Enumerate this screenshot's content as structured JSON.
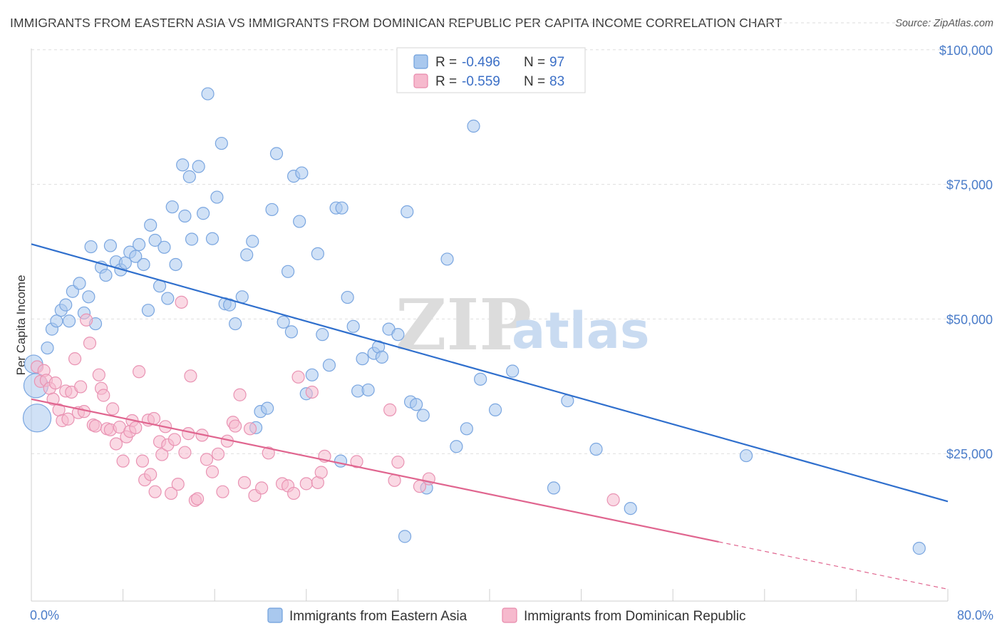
{
  "title": "IMMIGRANTS FROM EASTERN ASIA VS IMMIGRANTS FROM DOMINICAN REPUBLIC PER CAPITA INCOME CORRELATION CHART",
  "source": "Source: ZipAtlas.com",
  "watermark": {
    "zip": "ZIP",
    "atlas": "atlas"
  },
  "colors": {
    "blue": "#4a7cc9",
    "blue_fill": "#a9c8ee",
    "blue_line": "#2f6fcd",
    "pink": "#e0729a",
    "pink_fill": "#f6b9cd",
    "pink_line": "#e0658f"
  },
  "legend": {
    "rows": [
      {
        "r_label": "R = ",
        "r_value": "-0.496",
        "n_label": "N = ",
        "n_value": "97"
      },
      {
        "r_label": "R = ",
        "r_value": "-0.559",
        "n_label": "N = ",
        "n_value": "83"
      }
    ]
  },
  "bottom_legend": [
    "Immigrants from Eastern Asia",
    "Immigrants from Dominican Republic"
  ],
  "chart_data": {
    "type": "scatter",
    "xlabel": "",
    "ylabel": "Per Capita Income",
    "xlim": [
      0,
      80
    ],
    "ylim": [
      0,
      105000
    ],
    "x_tick_labels": [
      {
        "value": 0,
        "label": "0.0%"
      },
      {
        "value": 80,
        "label": "80.0%"
      }
    ],
    "y_ticks": [
      {
        "value": 25000,
        "label": "$25,000"
      },
      {
        "value": 50000,
        "label": "$50,000"
      },
      {
        "value": 75000,
        "label": "$75,000"
      },
      {
        "value": 100000,
        "label": "$100,000"
      }
    ],
    "grid": "horizontal-dashed",
    "legend_position": "top-center",
    "series": [
      {
        "name": "Immigrants from Eastern Asia",
        "color": "#4a7cc9",
        "trend": {
          "x": [
            0,
            80
          ],
          "y": [
            66300,
            18500
          ]
        },
        "points": [
          {
            "x": 0.2,
            "y": 44000,
            "s": 1.5
          },
          {
            "x": 0.4,
            "y": 40000,
            "s": 2.0
          },
          {
            "x": 0.5,
            "y": 34000,
            "s": 2.3
          },
          {
            "x": 1.4,
            "y": 47000
          },
          {
            "x": 1.8,
            "y": 50500
          },
          {
            "x": 2.2,
            "y": 52000
          },
          {
            "x": 2.6,
            "y": 54000
          },
          {
            "x": 3.0,
            "y": 55000
          },
          {
            "x": 3.3,
            "y": 52000
          },
          {
            "x": 3.6,
            "y": 57500
          },
          {
            "x": 4.2,
            "y": 59000
          },
          {
            "x": 4.6,
            "y": 53500
          },
          {
            "x": 5.0,
            "y": 56500
          },
          {
            "x": 5.6,
            "y": 51500
          },
          {
            "x": 5.2,
            "y": 65800
          },
          {
            "x": 6.1,
            "y": 62000
          },
          {
            "x": 6.5,
            "y": 60500
          },
          {
            "x": 6.9,
            "y": 66000
          },
          {
            "x": 7.4,
            "y": 63000
          },
          {
            "x": 7.8,
            "y": 61500
          },
          {
            "x": 8.2,
            "y": 62800
          },
          {
            "x": 8.6,
            "y": 64800
          },
          {
            "x": 9.1,
            "y": 64000
          },
          {
            "x": 9.4,
            "y": 66200
          },
          {
            "x": 9.8,
            "y": 62500
          },
          {
            "x": 10.2,
            "y": 54000
          },
          {
            "x": 10.4,
            "y": 69800
          },
          {
            "x": 10.8,
            "y": 67000
          },
          {
            "x": 11.2,
            "y": 58500
          },
          {
            "x": 11.6,
            "y": 65700
          },
          {
            "x": 11.9,
            "y": 56200
          },
          {
            "x": 12.3,
            "y": 73200
          },
          {
            "x": 12.6,
            "y": 62500
          },
          {
            "x": 13.2,
            "y": 81000
          },
          {
            "x": 13.4,
            "y": 71500
          },
          {
            "x": 13.8,
            "y": 78800
          },
          {
            "x": 14.0,
            "y": 67200
          },
          {
            "x": 14.6,
            "y": 80700
          },
          {
            "x": 15.0,
            "y": 72000
          },
          {
            "x": 15.4,
            "y": 94200
          },
          {
            "x": 15.8,
            "y": 67300
          },
          {
            "x": 16.2,
            "y": 75000
          },
          {
            "x": 16.6,
            "y": 85000
          },
          {
            "x": 16.9,
            "y": 55200
          },
          {
            "x": 17.3,
            "y": 55000
          },
          {
            "x": 17.8,
            "y": 51500
          },
          {
            "x": 18.4,
            "y": 56500
          },
          {
            "x": 18.8,
            "y": 64300
          },
          {
            "x": 19.3,
            "y": 66800
          },
          {
            "x": 19.6,
            "y": 32200
          },
          {
            "x": 20.0,
            "y": 35200
          },
          {
            "x": 20.6,
            "y": 35800
          },
          {
            "x": 21.0,
            "y": 72700
          },
          {
            "x": 21.4,
            "y": 83100
          },
          {
            "x": 22.0,
            "y": 51800
          },
          {
            "x": 22.4,
            "y": 61200
          },
          {
            "x": 22.7,
            "y": 50000
          },
          {
            "x": 22.9,
            "y": 78900
          },
          {
            "x": 23.4,
            "y": 70500
          },
          {
            "x": 23.6,
            "y": 79500
          },
          {
            "x": 24.0,
            "y": 38500
          },
          {
            "x": 24.5,
            "y": 42000
          },
          {
            "x": 25.0,
            "y": 64500
          },
          {
            "x": 25.4,
            "y": 49500
          },
          {
            "x": 26.0,
            "y": 43800
          },
          {
            "x": 26.6,
            "y": 73000
          },
          {
            "x": 27.1,
            "y": 73000
          },
          {
            "x": 27.0,
            "y": 26000
          },
          {
            "x": 27.6,
            "y": 56400
          },
          {
            "x": 28.1,
            "y": 51000
          },
          {
            "x": 28.5,
            "y": 39000
          },
          {
            "x": 28.9,
            "y": 45000
          },
          {
            "x": 29.4,
            "y": 39200
          },
          {
            "x": 29.9,
            "y": 46000
          },
          {
            "x": 30.3,
            "y": 47200
          },
          {
            "x": 30.6,
            "y": 45300
          },
          {
            "x": 31.2,
            "y": 50500
          },
          {
            "x": 32.0,
            "y": 49500
          },
          {
            "x": 32.6,
            "y": 12000
          },
          {
            "x": 32.8,
            "y": 72300
          },
          {
            "x": 33.1,
            "y": 37000
          },
          {
            "x": 33.6,
            "y": 36500
          },
          {
            "x": 34.2,
            "y": 34500
          },
          {
            "x": 34.5,
            "y": 21000
          },
          {
            "x": 36.3,
            "y": 63500
          },
          {
            "x": 37.1,
            "y": 28700
          },
          {
            "x": 38.0,
            "y": 32000
          },
          {
            "x": 38.6,
            "y": 88200
          },
          {
            "x": 39.2,
            "y": 41200
          },
          {
            "x": 40.5,
            "y": 35500
          },
          {
            "x": 42.0,
            "y": 42700
          },
          {
            "x": 45.6,
            "y": 21000
          },
          {
            "x": 46.8,
            "y": 37200
          },
          {
            "x": 49.3,
            "y": 28200
          },
          {
            "x": 52.3,
            "y": 17200
          },
          {
            "x": 62.4,
            "y": 27000
          },
          {
            "x": 77.5,
            "y": 9800
          }
        ]
      },
      {
        "name": "Immigrants from Dominican Republic",
        "color": "#e0729a",
        "trend": {
          "x": [
            0,
            60
          ],
          "y": [
            37500,
            11000
          ]
        },
        "trend_dashed": {
          "x": [
            60,
            80
          ],
          "y": [
            11000,
            2200
          ]
        },
        "points": [
          {
            "x": 0.5,
            "y": 43500
          },
          {
            "x": 0.8,
            "y": 40800
          },
          {
            "x": 1.1,
            "y": 42800
          },
          {
            "x": 1.3,
            "y": 41000
          },
          {
            "x": 1.6,
            "y": 39500
          },
          {
            "x": 1.9,
            "y": 37500
          },
          {
            "x": 2.1,
            "y": 40500
          },
          {
            "x": 2.4,
            "y": 35500
          },
          {
            "x": 2.7,
            "y": 33500
          },
          {
            "x": 3.0,
            "y": 39000
          },
          {
            "x": 3.2,
            "y": 33800
          },
          {
            "x": 3.5,
            "y": 38800
          },
          {
            "x": 3.8,
            "y": 45000
          },
          {
            "x": 4.1,
            "y": 35000
          },
          {
            "x": 4.3,
            "y": 39800
          },
          {
            "x": 4.6,
            "y": 35200
          },
          {
            "x": 4.8,
            "y": 52200
          },
          {
            "x": 5.1,
            "y": 47900
          },
          {
            "x": 5.4,
            "y": 32700
          },
          {
            "x": 5.6,
            "y": 32500
          },
          {
            "x": 5.9,
            "y": 42000
          },
          {
            "x": 6.1,
            "y": 39500
          },
          {
            "x": 6.3,
            "y": 38200
          },
          {
            "x": 6.6,
            "y": 32000
          },
          {
            "x": 6.9,
            "y": 31800
          },
          {
            "x": 7.1,
            "y": 35700
          },
          {
            "x": 7.4,
            "y": 29200
          },
          {
            "x": 7.7,
            "y": 32300
          },
          {
            "x": 8.0,
            "y": 26000
          },
          {
            "x": 8.3,
            "y": 30500
          },
          {
            "x": 8.6,
            "y": 31500
          },
          {
            "x": 8.8,
            "y": 33500
          },
          {
            "x": 9.1,
            "y": 32200
          },
          {
            "x": 9.4,
            "y": 42600
          },
          {
            "x": 9.7,
            "y": 26000
          },
          {
            "x": 9.9,
            "y": 22500
          },
          {
            "x": 10.2,
            "y": 33600
          },
          {
            "x": 10.4,
            "y": 23500
          },
          {
            "x": 10.7,
            "y": 33900
          },
          {
            "x": 10.8,
            "y": 20300
          },
          {
            "x": 11.2,
            "y": 29600
          },
          {
            "x": 11.4,
            "y": 27200
          },
          {
            "x": 11.7,
            "y": 32400
          },
          {
            "x": 11.9,
            "y": 29000
          },
          {
            "x": 12.2,
            "y": 20000
          },
          {
            "x": 12.5,
            "y": 30000
          },
          {
            "x": 12.8,
            "y": 21700
          },
          {
            "x": 13.1,
            "y": 55500
          },
          {
            "x": 13.4,
            "y": 27600
          },
          {
            "x": 13.7,
            "y": 31100
          },
          {
            "x": 13.9,
            "y": 41800
          },
          {
            "x": 14.3,
            "y": 18700
          },
          {
            "x": 14.5,
            "y": 19000
          },
          {
            "x": 14.9,
            "y": 30800
          },
          {
            "x": 15.3,
            "y": 26300
          },
          {
            "x": 15.8,
            "y": 24000
          },
          {
            "x": 16.3,
            "y": 27300
          },
          {
            "x": 16.7,
            "y": 20300
          },
          {
            "x": 17.1,
            "y": 29700
          },
          {
            "x": 17.6,
            "y": 33200
          },
          {
            "x": 17.8,
            "y": 32500
          },
          {
            "x": 18.2,
            "y": 38300
          },
          {
            "x": 18.6,
            "y": 22000
          },
          {
            "x": 19.1,
            "y": 32000
          },
          {
            "x": 19.5,
            "y": 19600
          },
          {
            "x": 20.1,
            "y": 21000
          },
          {
            "x": 20.7,
            "y": 27500
          },
          {
            "x": 21.9,
            "y": 21800
          },
          {
            "x": 22.4,
            "y": 21400
          },
          {
            "x": 22.9,
            "y": 20000
          },
          {
            "x": 23.3,
            "y": 41600
          },
          {
            "x": 24.0,
            "y": 21800
          },
          {
            "x": 24.5,
            "y": 38800
          },
          {
            "x": 25.0,
            "y": 22000
          },
          {
            "x": 25.3,
            "y": 23900
          },
          {
            "x": 25.6,
            "y": 26900
          },
          {
            "x": 28.4,
            "y": 25900
          },
          {
            "x": 31.3,
            "y": 35500
          },
          {
            "x": 31.7,
            "y": 22400
          },
          {
            "x": 32.0,
            "y": 25800
          },
          {
            "x": 33.9,
            "y": 21300
          },
          {
            "x": 34.7,
            "y": 22700
          },
          {
            "x": 50.8,
            "y": 18800
          }
        ]
      }
    ]
  }
}
